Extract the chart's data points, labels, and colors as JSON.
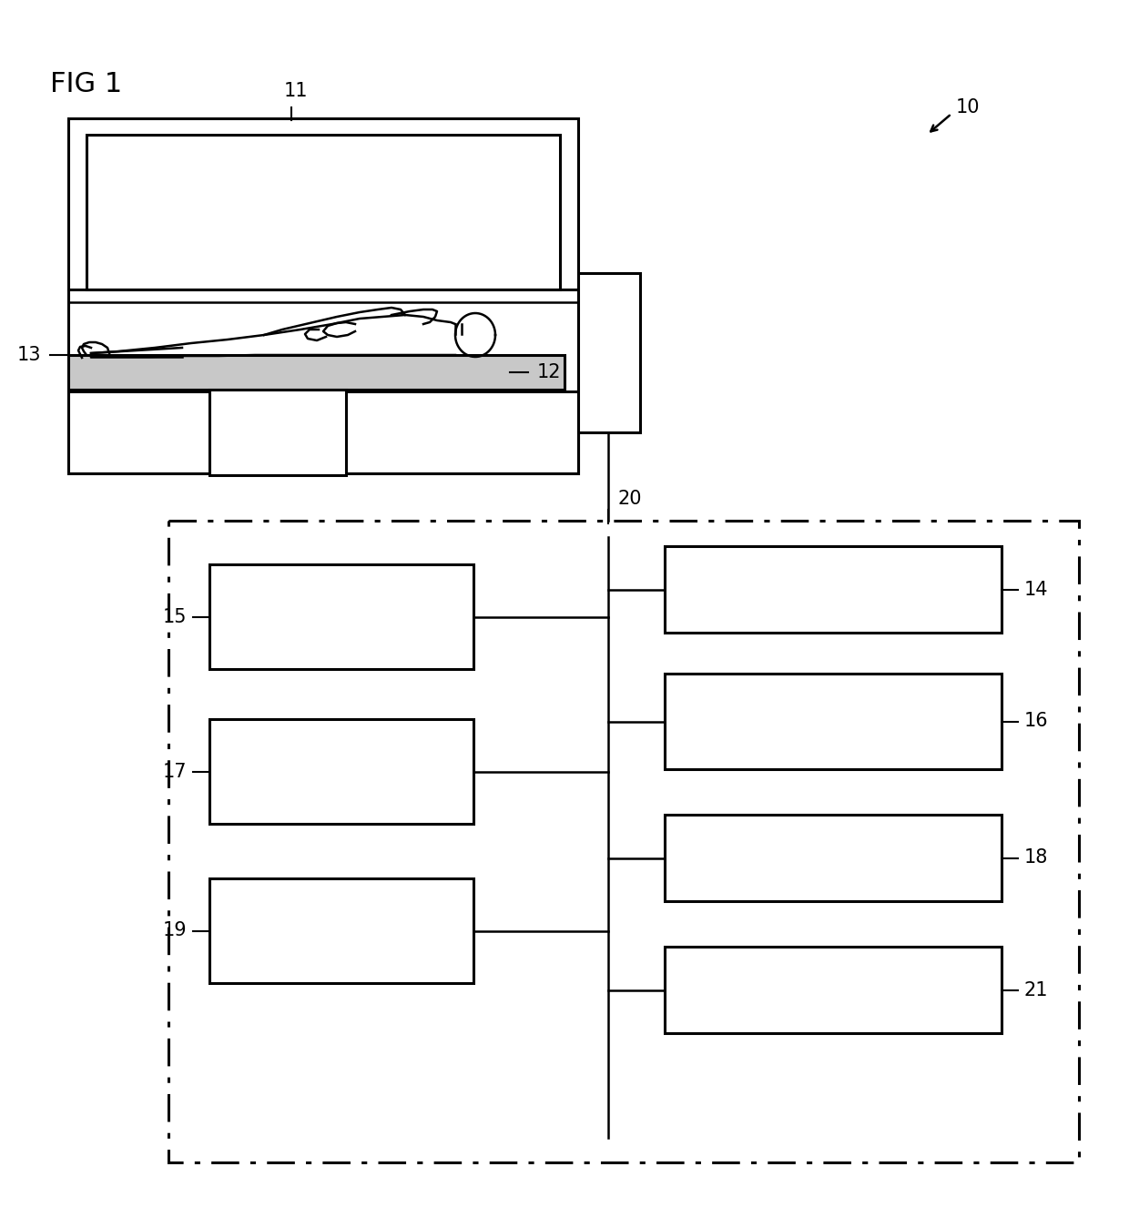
{
  "fig_label": "FIG 1",
  "ref_10": "10",
  "ref_11": "11",
  "ref_12": "12",
  "ref_13": "13",
  "ref_14": "14",
  "ref_15": "15",
  "ref_16": "16",
  "ref_17": "17",
  "ref_18": "18",
  "ref_19": "19",
  "ref_20": "20",
  "ref_21": "21",
  "bg_color": "#ffffff",
  "font_size_ref": 15,
  "font_size_fig": 22
}
